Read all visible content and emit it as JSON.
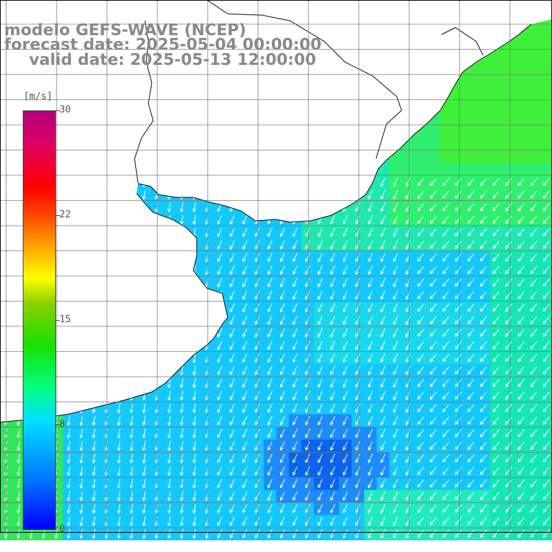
{
  "title": {
    "line1": "modelo GEFS-WAVE (NCEP)",
    "line2": "forecast date: 2025-05-04 00:00:00",
    "line3": "valid date: 2025-05-13 12:00:00"
  },
  "colorbar": {
    "unit": "[m/s]",
    "ticks": [
      "30",
      "22",
      "15",
      "8",
      "0"
    ],
    "tick_values": [
      30,
      22,
      15,
      8,
      0
    ],
    "min": 0,
    "max": 30
  },
  "map": {
    "field": "wind speed",
    "vector_field": "wind direction",
    "prevailing_direction": "arrows toward south-southwest",
    "palette": {
      "low": "#0000ff",
      "cyan": "#00e0ff",
      "green": "#19e000",
      "yellow": "#ffff00",
      "red": "#ff0000",
      "high": "#b4007e",
      "land": "#ffffff",
      "coast": "#000000",
      "grid": "#808080",
      "arrows": "#ffffff"
    }
  }
}
